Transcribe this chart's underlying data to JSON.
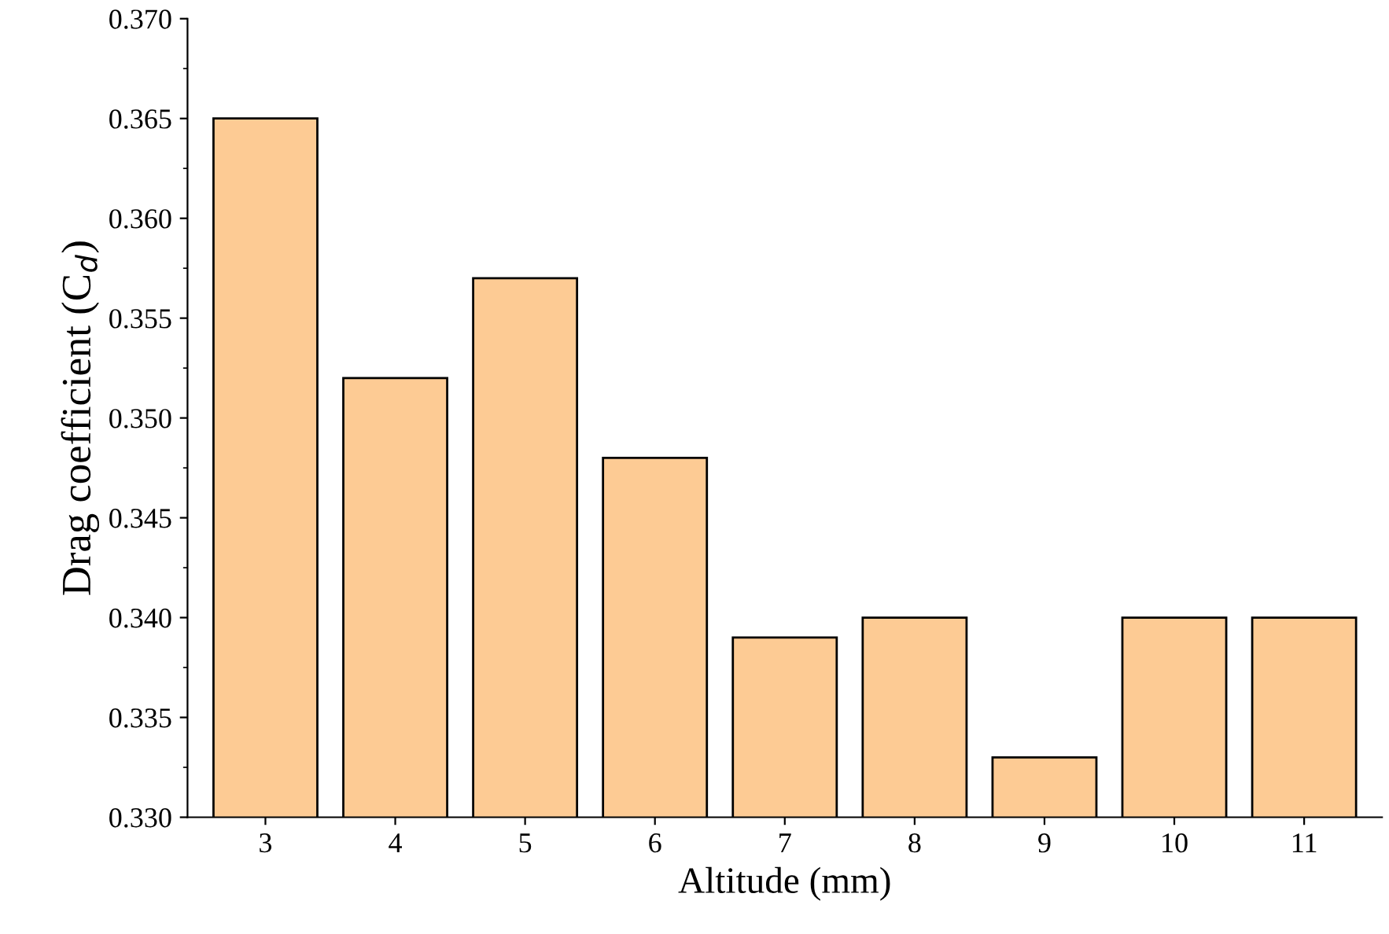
{
  "chart_data": {
    "type": "bar",
    "xlabel": "Altitude (mm)",
    "ylabel": "Drag coefficient (C$_{d}$)",
    "categories": [
      "3",
      "4",
      "5",
      "6",
      "7",
      "8",
      "9",
      "10",
      "11"
    ],
    "values": [
      0.365,
      0.352,
      0.357,
      0.348,
      0.339,
      0.34,
      0.333,
      0.34,
      0.34
    ],
    "color": "#fdcb94",
    "ylim": [
      0.33,
      0.37
    ],
    "yticks": [
      {
        "value": 0.33,
        "label": "0.330"
      },
      {
        "value": 0.335,
        "label": "0.335"
      },
      {
        "value": 0.34,
        "label": "0.340"
      },
      {
        "value": 0.345,
        "label": "0.345"
      },
      {
        "value": 0.35,
        "label": "0.350"
      },
      {
        "value": 0.355,
        "label": "0.355"
      },
      {
        "value": 0.36,
        "label": "0.360"
      },
      {
        "value": 0.365,
        "label": "0.365"
      },
      {
        "value": 0.37,
        "label": "0.370"
      }
    ],
    "grid": false,
    "legend": false
  }
}
